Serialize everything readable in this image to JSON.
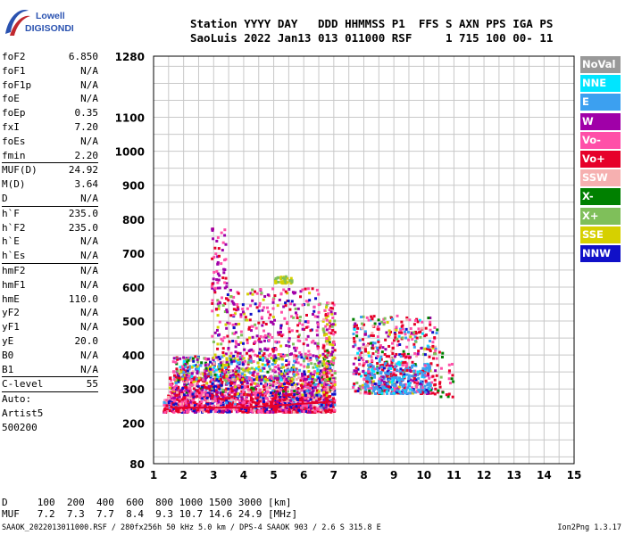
{
  "logo": {
    "line1": "Lowell",
    "line2": "DIGISONDE"
  },
  "header": {
    "line1": "Station YYYY DAY   DDD HHMMSS P1  FFS S AXN PPS IGA PS",
    "line2": "SaoLuis 2022 Jan13 013 011000 RSF     1 715 100 00- 11"
  },
  "params": {
    "group1": [
      {
        "label": "foF2",
        "value": "6.850"
      },
      {
        "label": "foF1",
        "value": "N/A"
      },
      {
        "label": "foF1p",
        "value": "N/A"
      },
      {
        "label": "foE",
        "value": "N/A"
      },
      {
        "label": "foEp",
        "value": "0.35"
      },
      {
        "label": "fxI",
        "value": "7.20"
      },
      {
        "label": "foEs",
        "value": "N/A"
      },
      {
        "label": "fmin",
        "value": "2.20"
      }
    ],
    "group2": [
      {
        "label": "MUF(D)",
        "value": "24.92"
      },
      {
        "label": "M(D)",
        "value": "3.64"
      },
      {
        "label": "D",
        "value": "N/A"
      }
    ],
    "group3": [
      {
        "label": "h`F",
        "value": "235.0"
      },
      {
        "label": "h`F2",
        "value": "235.0"
      },
      {
        "label": "h`E",
        "value": "N/A"
      },
      {
        "label": "h`Es",
        "value": "N/A"
      }
    ],
    "group4": [
      {
        "label": "hmF2",
        "value": "N/A"
      },
      {
        "label": "hmF1",
        "value": "N/A"
      },
      {
        "label": "hmE",
        "value": "110.0"
      },
      {
        "label": "yF2",
        "value": "N/A"
      },
      {
        "label": "yF1",
        "value": "N/A"
      },
      {
        "label": "yE",
        "value": "20.0"
      },
      {
        "label": "B0",
        "value": "N/A"
      },
      {
        "label": "B1",
        "value": "N/A"
      }
    ],
    "group5": [
      {
        "label": "C-level",
        "value": "55"
      }
    ],
    "group6": [
      "Auto:",
      "Artist5",
      "500200"
    ]
  },
  "legend": [
    {
      "label": "NoVal",
      "color": "#999999"
    },
    {
      "label": "NNE",
      "color": "#00e5ff"
    },
    {
      "label": "E",
      "color": "#3ca0f0"
    },
    {
      "label": "W",
      "color": "#a000a8"
    },
    {
      "label": "Vo-",
      "color": "#ff4fa8"
    },
    {
      "label": "Vo+",
      "color": "#e6002a"
    },
    {
      "label": "SSW",
      "color": "#f6b0b0"
    },
    {
      "label": "X-",
      "color": "#008000"
    },
    {
      "label": "X+",
      "color": "#7fbf5a"
    },
    {
      "label": "SSE",
      "color": "#d6d000"
    },
    {
      "label": "NNW",
      "color": "#1010c8"
    }
  ],
  "chart_data": {
    "type": "scatter",
    "x_ticks": [
      "1",
      "2",
      "3",
      "4",
      "5",
      "6",
      "7",
      "8",
      "9",
      "10",
      "11",
      "12",
      "13",
      "14",
      "15"
    ],
    "y_ticks": [
      "80",
      "200",
      "300",
      "400",
      "500",
      "600",
      "700",
      "800",
      "900",
      "1000",
      "1100",
      "1280"
    ],
    "xlim": [
      1,
      15
    ],
    "ylim": [
      80,
      1280
    ],
    "grid": true
  },
  "distance_table": {
    "line1": "D     100  200  400  600  800 1000 1500 3000 [km]",
    "line2": "MUF   7.2  7.3  7.7  8.4  9.3 10.7 14.6 24.9 [MHz]"
  },
  "footer": "SAAOK_2022013011000.RSF / 280fx256h 50 kHz 5.0 km / DPS-4 SAAOK 903 / 2.6 S 315.8 E",
  "version": "Ion2Png 1.3.17"
}
